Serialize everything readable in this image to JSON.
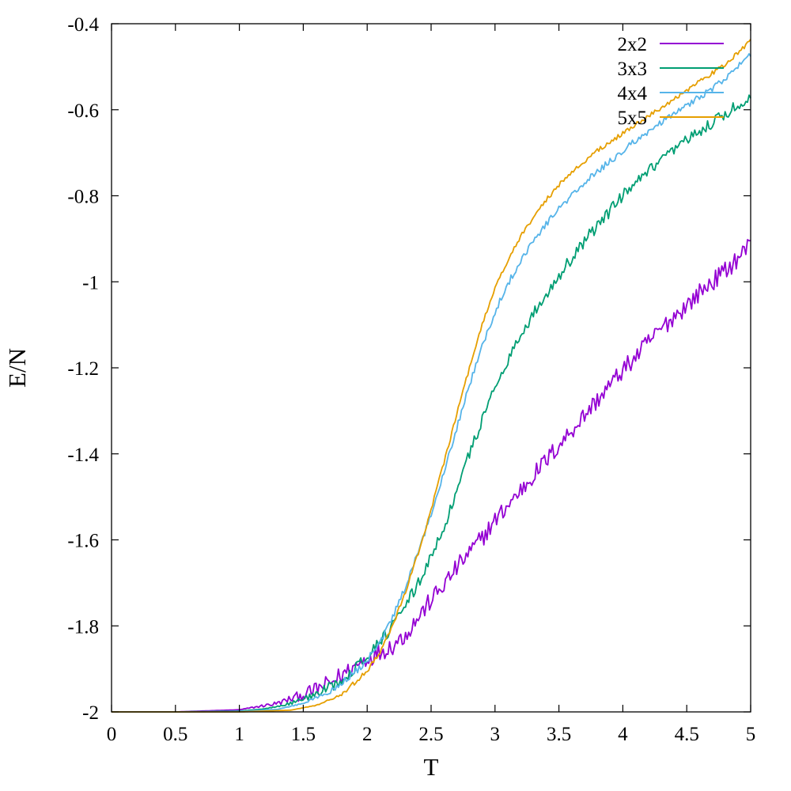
{
  "chart_data": {
    "type": "line",
    "xlabel": "T",
    "ylabel": "E/N",
    "xlim": [
      0,
      5
    ],
    "ylim": [
      -2,
      -0.4
    ],
    "xticks": [
      "0",
      "0.5",
      "1",
      "1.5",
      "2",
      "2.5",
      "3",
      "3.5",
      "4",
      "4.5",
      "5"
    ],
    "yticks": [
      "-2",
      "-1.8",
      "-1.6",
      "-1.4",
      "-1.2",
      "-1",
      "-0.8",
      "-0.6",
      "-0.4"
    ],
    "grid": false,
    "legend_position": "top-right",
    "series": [
      {
        "name": "2x2",
        "color": "#9400d3",
        "x": [
          0,
          0.5,
          1.0,
          1.1,
          1.3,
          1.5,
          1.7,
          1.8,
          1.9,
          2.0,
          2.1,
          2.2,
          2.3,
          2.4,
          2.5,
          2.6,
          2.7,
          2.8,
          2.9,
          3.0,
          3.1,
          3.2,
          3.3,
          3.4,
          3.5,
          3.6,
          3.7,
          3.8,
          3.9,
          4.0,
          4.1,
          4.2,
          4.3,
          4.4,
          4.5,
          4.6,
          4.7,
          4.8,
          4.9,
          5.0
        ],
        "y": [
          -2.0,
          -2.0,
          -1.995,
          -1.99,
          -1.98,
          -1.96,
          -1.935,
          -1.915,
          -1.895,
          -1.875,
          -1.86,
          -1.845,
          -1.82,
          -1.78,
          -1.74,
          -1.705,
          -1.665,
          -1.63,
          -1.595,
          -1.555,
          -1.52,
          -1.485,
          -1.45,
          -1.415,
          -1.38,
          -1.345,
          -1.31,
          -1.275,
          -1.24,
          -1.205,
          -1.175,
          -1.14,
          -1.11,
          -1.08,
          -1.055,
          -1.025,
          -1.0,
          -0.975,
          -0.945,
          -0.91
        ]
      },
      {
        "name": "3x3",
        "color": "#009e73",
        "x": [
          0,
          0.5,
          1.0,
          1.2,
          1.4,
          1.6,
          1.8,
          2.0,
          2.2,
          2.3,
          2.4,
          2.5,
          2.6,
          2.7,
          2.8,
          2.9,
          3.0,
          3.1,
          3.2,
          3.3,
          3.4,
          3.5,
          3.6,
          3.7,
          3.8,
          3.9,
          4.0,
          4.2,
          4.4,
          4.6,
          4.8,
          5.0
        ],
        "y": [
          -2.0,
          -2.0,
          -1.998,
          -1.993,
          -1.98,
          -1.96,
          -1.925,
          -1.87,
          -1.8,
          -1.755,
          -1.7,
          -1.64,
          -1.57,
          -1.49,
          -1.4,
          -1.32,
          -1.245,
          -1.18,
          -1.125,
          -1.075,
          -1.03,
          -0.985,
          -0.945,
          -0.905,
          -0.87,
          -0.835,
          -0.8,
          -0.745,
          -0.695,
          -0.65,
          -0.61,
          -0.57
        ]
      },
      {
        "name": "4x4",
        "color": "#56b4e9",
        "x": [
          0,
          0.5,
          1.0,
          1.3,
          1.5,
          1.7,
          1.9,
          2.0,
          2.1,
          2.2,
          2.3,
          2.4,
          2.5,
          2.6,
          2.7,
          2.8,
          2.9,
          3.0,
          3.1,
          3.2,
          3.3,
          3.4,
          3.5,
          3.6,
          3.7,
          3.8,
          3.9,
          4.0,
          4.2,
          4.4,
          4.6,
          4.8,
          5.0
        ],
        "y": [
          -2.0,
          -2.0,
          -1.999,
          -1.994,
          -1.98,
          -1.955,
          -1.91,
          -1.88,
          -1.84,
          -1.78,
          -1.71,
          -1.63,
          -1.54,
          -1.44,
          -1.34,
          -1.24,
          -1.15,
          -1.07,
          -1.005,
          -0.95,
          -0.905,
          -0.865,
          -0.83,
          -0.8,
          -0.77,
          -0.745,
          -0.72,
          -0.695,
          -0.65,
          -0.61,
          -0.57,
          -0.53,
          -0.47
        ]
      },
      {
        "name": "5x5",
        "color": "#e69f00",
        "x": [
          0,
          0.5,
          1.0,
          1.4,
          1.6,
          1.8,
          2.0,
          2.1,
          2.2,
          2.3,
          2.4,
          2.5,
          2.6,
          2.7,
          2.8,
          2.9,
          3.0,
          3.1,
          3.2,
          3.3,
          3.4,
          3.5,
          3.6,
          3.7,
          3.8,
          3.9,
          4.0,
          4.2,
          4.4,
          4.6,
          4.8,
          5.0
        ],
        "y": [
          -2.0,
          -2.0,
          -2.0,
          -1.996,
          -1.985,
          -1.96,
          -1.905,
          -1.86,
          -1.8,
          -1.72,
          -1.63,
          -1.53,
          -1.42,
          -1.31,
          -1.2,
          -1.1,
          -1.015,
          -0.95,
          -0.895,
          -0.85,
          -0.81,
          -0.775,
          -0.745,
          -0.72,
          -0.695,
          -0.675,
          -0.655,
          -0.615,
          -0.575,
          -0.535,
          -0.495,
          -0.44
        ]
      }
    ]
  }
}
